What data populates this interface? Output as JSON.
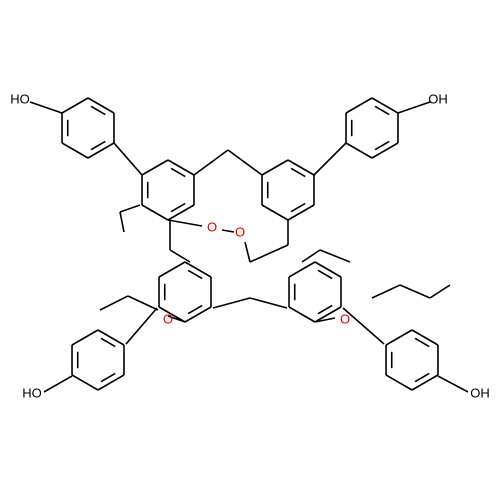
{
  "atoms": [
    {
      "label": "HO"
    },
    {
      "label": "OH"
    },
    {
      "label": "HO"
    },
    {
      "label": "OH"
    },
    {
      "label": "O"
    },
    {
      "label": "O"
    },
    {
      "label": "O"
    },
    {
      "label": "O"
    }
  ]
}
